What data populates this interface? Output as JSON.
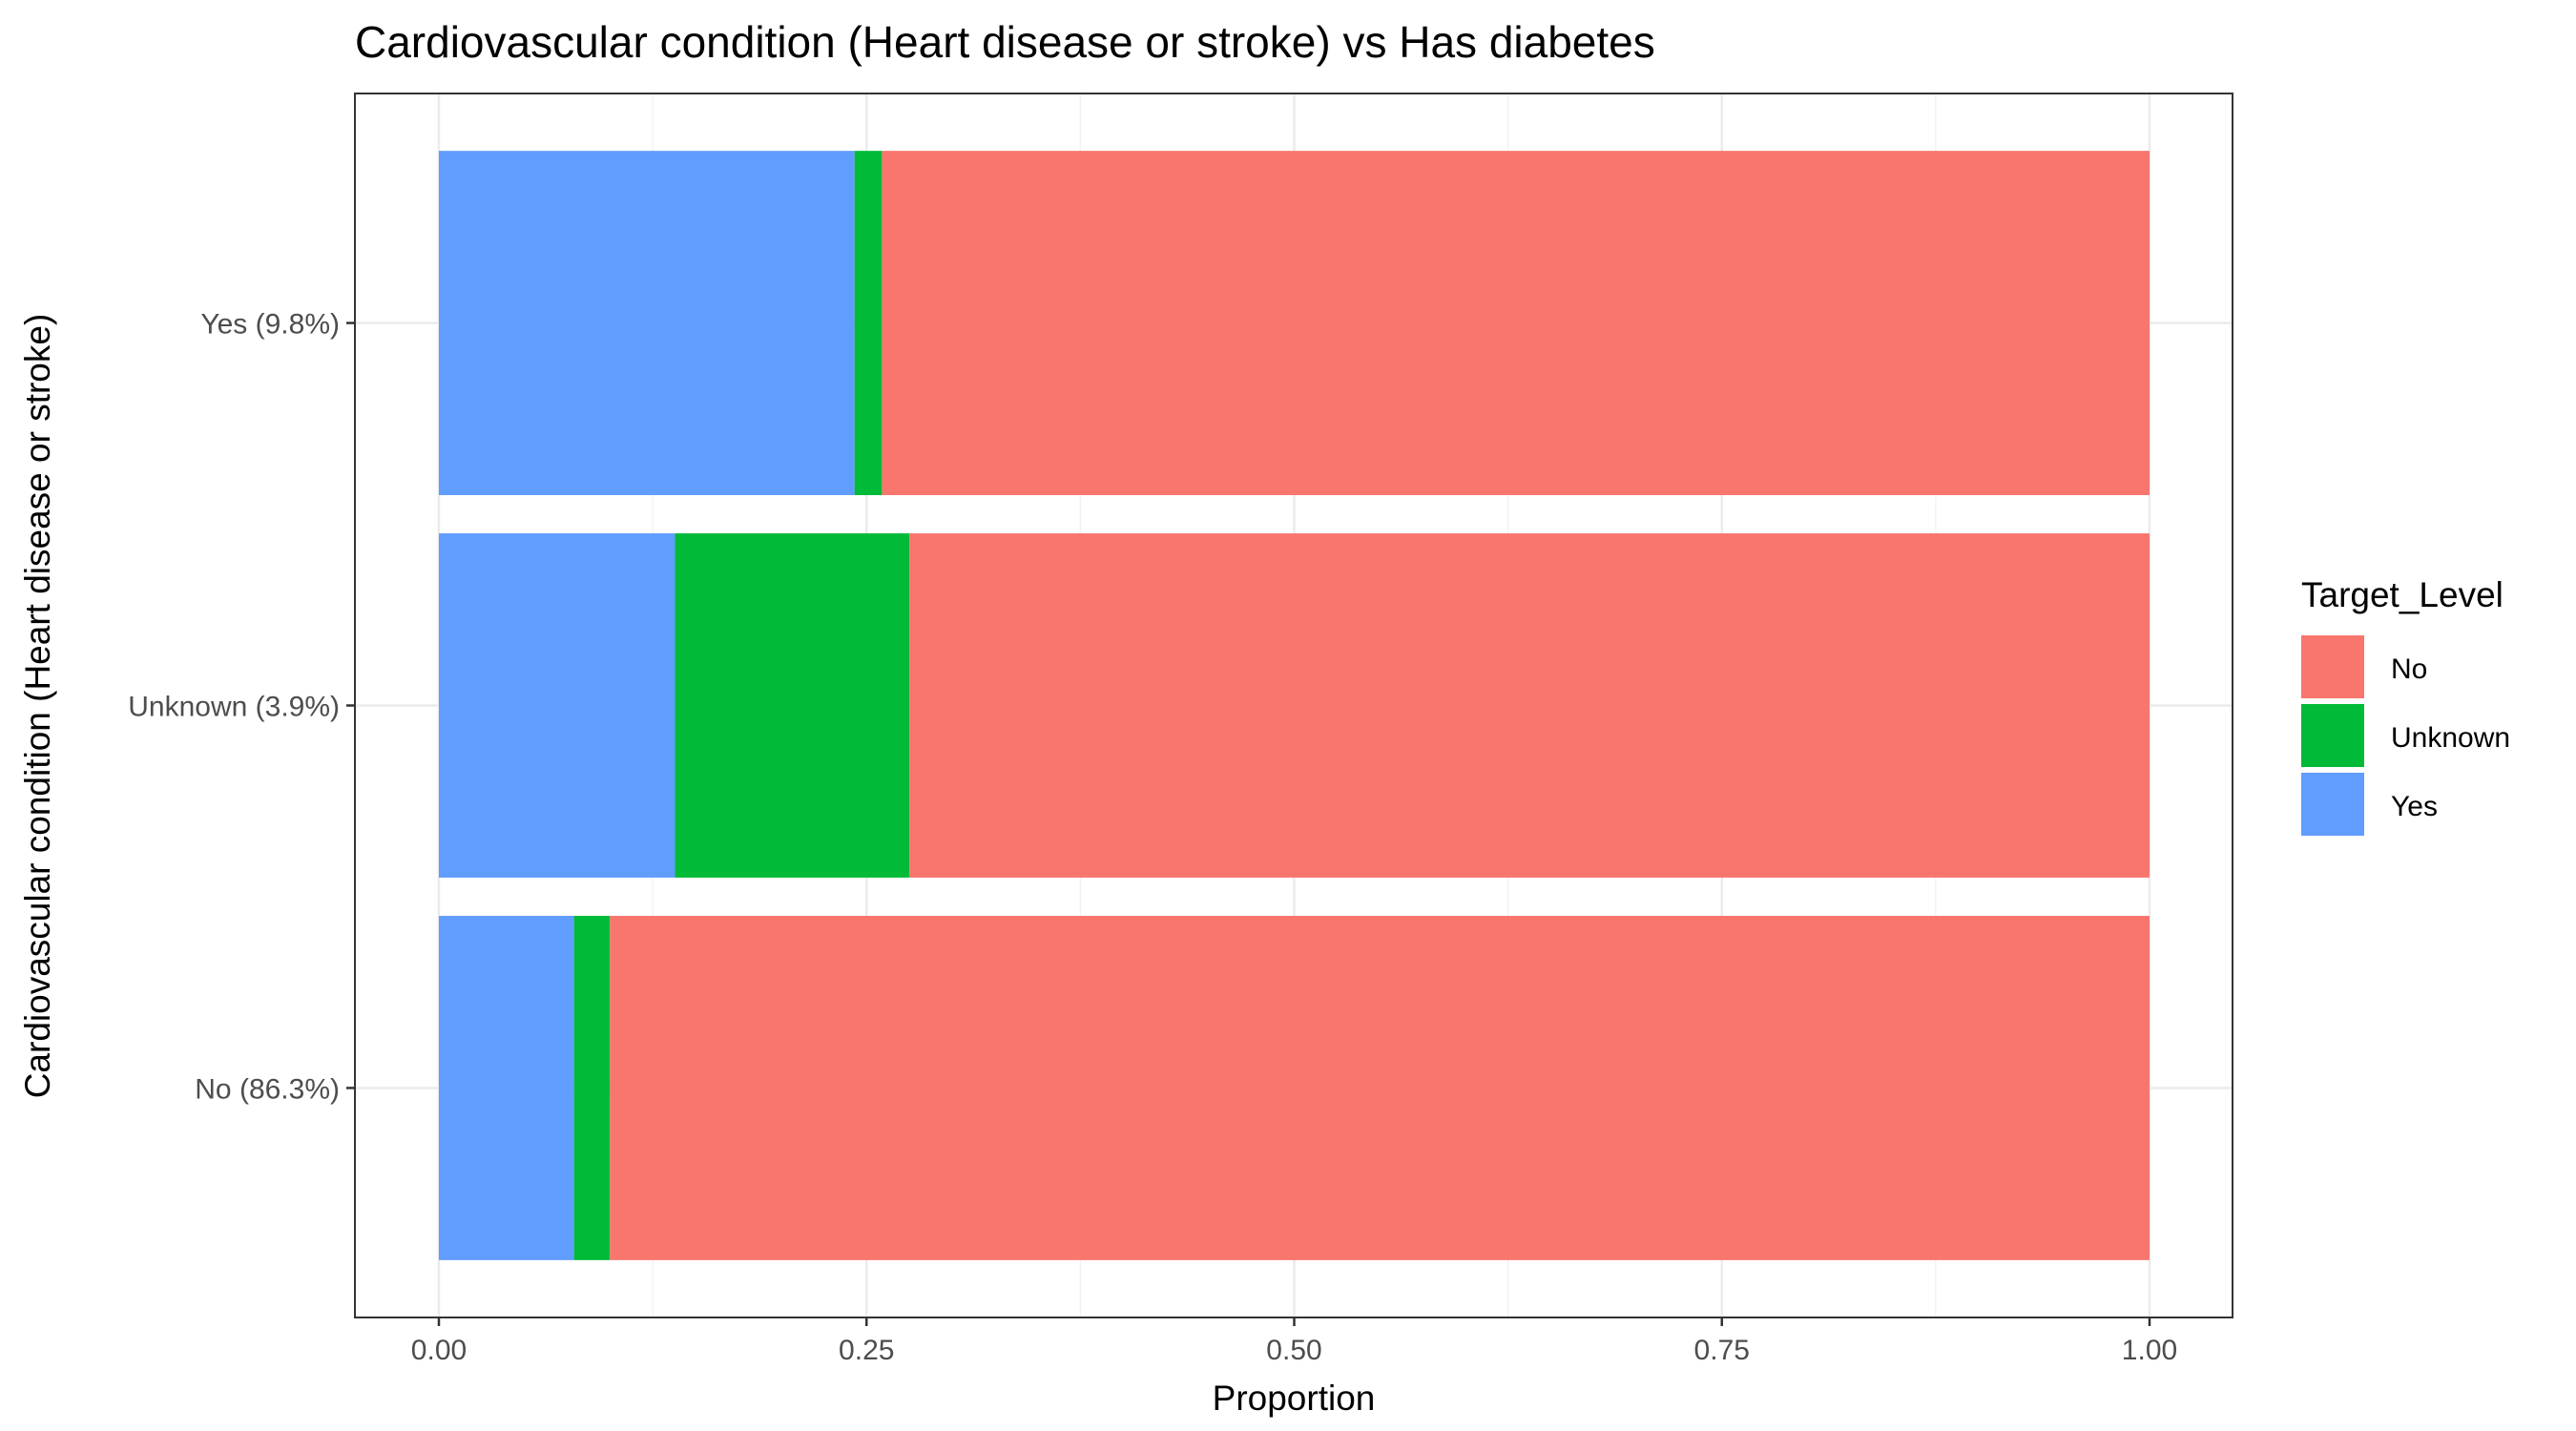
{
  "chart_data": {
    "type": "bar",
    "orientation": "horizontal",
    "stacked": true,
    "title": "Cardiovascular condition (Heart disease or stroke) vs Has diabetes",
    "xlabel": "Proportion",
    "ylabel": "Cardiovascular condition (Heart disease or stroke)",
    "xlim": [
      0,
      1
    ],
    "x_ticks": [
      0,
      0.25,
      0.5,
      0.75,
      1
    ],
    "x_tick_labels": [
      "0.00",
      "0.25",
      "0.50",
      "0.75",
      "1.00"
    ],
    "categories": [
      "No (86.3%)",
      "Unknown (3.9%)",
      "Yes (9.8%)"
    ],
    "series": [
      {
        "name": "Yes",
        "color": "#619CFF",
        "values": [
          0.079,
          0.138,
          0.243
        ]
      },
      {
        "name": "Unknown",
        "color": "#00BA38",
        "values": [
          0.021,
          0.137,
          0.016
        ]
      },
      {
        "name": "No",
        "color": "#F8766D",
        "values": [
          0.9,
          0.725,
          0.741
        ]
      }
    ],
    "legend": {
      "title": "Target_Level",
      "placement": "right",
      "entries": [
        {
          "label": "No",
          "color": "#F8766D"
        },
        {
          "label": "Unknown",
          "color": "#00BA38"
        },
        {
          "label": "Yes",
          "color": "#619CFF"
        }
      ]
    },
    "grid": true
  }
}
